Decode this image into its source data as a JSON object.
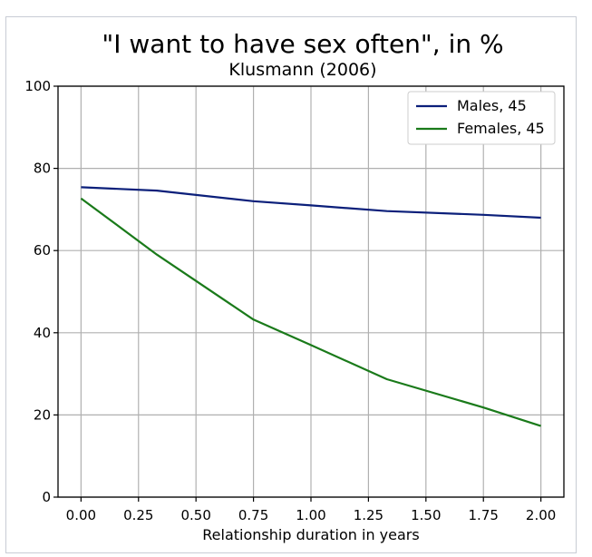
{
  "chart_data": {
    "type": "line",
    "title": "\"I want to have sex often\", in %",
    "subtitle": "Klusmann (2006)",
    "xlabel": "Relationship duration in years",
    "ylabel": "",
    "xlim": [
      -0.1,
      2.1
    ],
    "ylim": [
      0,
      100
    ],
    "x_ticks": [
      "0.00",
      "0.25",
      "0.50",
      "0.75",
      "1.00",
      "1.25",
      "1.50",
      "1.75",
      "2.00"
    ],
    "y_ticks": [
      "0",
      "20",
      "40",
      "60",
      "80",
      "100"
    ],
    "grid": true,
    "legend_position": "top-right",
    "series": [
      {
        "name": "Males, 45",
        "color": "#0b1f7a",
        "x": [
          0,
          0.33,
          0.75,
          1.0,
          1.33,
          1.75,
          2.0
        ],
        "values": [
          75.4,
          74.6,
          72.0,
          71.0,
          69.6,
          68.7,
          68.0
        ]
      },
      {
        "name": "Females, 45",
        "color": "#1a7a1a",
        "x": [
          0,
          0.33,
          0.75,
          1.0,
          1.33,
          1.75,
          2.0
        ],
        "values": [
          72.7,
          59.0,
          43.2,
          37.0,
          28.7,
          21.8,
          17.3
        ]
      }
    ]
  }
}
